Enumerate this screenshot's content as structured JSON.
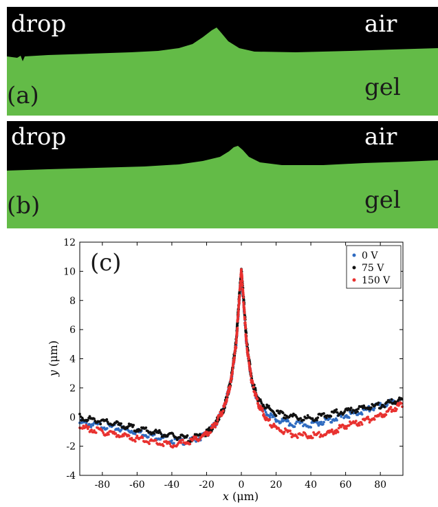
{
  "panels": [
    {
      "label": "(a)",
      "drop_label": "drop",
      "air_label": "air",
      "gel_label": "gel"
    },
    {
      "label": "(b)",
      "drop_label": "drop",
      "air_label": "air",
      "gel_label": "gel"
    }
  ],
  "colors": {
    "gel": "#63bb47",
    "background": "#000000",
    "series_0V": "#2f6bc0",
    "series_75V": "#111111",
    "series_150V": "#e8312f"
  },
  "chart_data": {
    "type": "scatter",
    "panel_label": "(c)",
    "xlabel": "x (μm)",
    "xlabel_var": "x",
    "xlabel_unit": "(μm)",
    "ylabel": "y (μm)",
    "ylabel_var": "y",
    "ylabel_unit": "(μm)",
    "xlim": [
      -93,
      93
    ],
    "ylim": [
      -4,
      12
    ],
    "xticks": [
      -80,
      -60,
      -40,
      -20,
      0,
      20,
      40,
      60,
      80
    ],
    "yticks": [
      -4,
      -2,
      0,
      2,
      4,
      6,
      8,
      10,
      12
    ],
    "grid": false,
    "legend_position": "top-right",
    "series": [
      {
        "name": "0 V",
        "color": "#2f6bc0",
        "x": [
          -93,
          -80,
          -60,
          -40,
          -30,
          -20,
          -15,
          -10,
          -6,
          -3,
          -1.5,
          0,
          1.5,
          3,
          6,
          10,
          15,
          20,
          30,
          40,
          50,
          60,
          70,
          80,
          93
        ],
        "y": [
          -0.4,
          -0.6,
          -1.0,
          -1.6,
          -1.7,
          -1.2,
          -0.5,
          0.6,
          2.4,
          5.0,
          7.5,
          9.9,
          7.5,
          5.0,
          2.4,
          0.9,
          0.2,
          -0.2,
          -0.5,
          -0.5,
          -0.2,
          0.1,
          0.4,
          0.8,
          1.2
        ]
      },
      {
        "name": "75 V",
        "color": "#111111",
        "x": [
          -93,
          -80,
          -60,
          -40,
          -30,
          -20,
          -15,
          -10,
          -6,
          -3,
          -1.5,
          0,
          1.5,
          3,
          6,
          10,
          15,
          20,
          30,
          40,
          50,
          60,
          70,
          80,
          93
        ],
        "y": [
          0.0,
          -0.3,
          -0.8,
          -1.3,
          -1.5,
          -1.1,
          -0.5,
          0.6,
          2.5,
          5.2,
          7.8,
          10.1,
          7.8,
          5.2,
          2.5,
          1.1,
          0.6,
          0.3,
          0.0,
          -0.1,
          0.2,
          0.4,
          0.6,
          0.8,
          1.2
        ]
      },
      {
        "name": "150 V",
        "color": "#e8312f",
        "x": [
          -93,
          -80,
          -60,
          -40,
          -30,
          -20,
          -15,
          -10,
          -6,
          -3,
          -1.5,
          0,
          1.5,
          3,
          6,
          10,
          15,
          20,
          30,
          40,
          50,
          60,
          70,
          80,
          93
        ],
        "y": [
          -0.7,
          -1.0,
          -1.5,
          -1.9,
          -1.7,
          -1.2,
          -0.5,
          0.6,
          2.4,
          5.0,
          7.6,
          10.1,
          7.6,
          5.0,
          2.4,
          0.8,
          -0.2,
          -0.8,
          -1.2,
          -1.3,
          -1.1,
          -0.6,
          -0.3,
          0.1,
          0.9
        ]
      }
    ]
  }
}
